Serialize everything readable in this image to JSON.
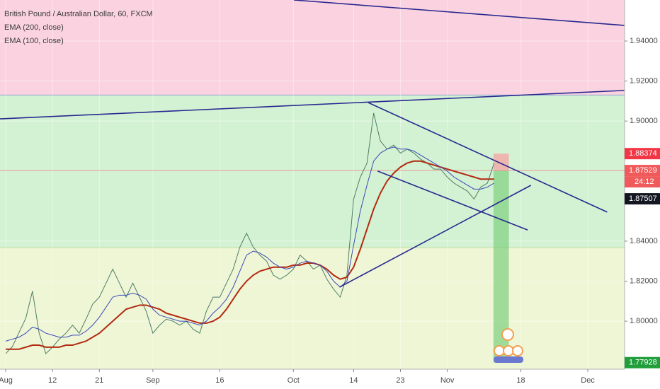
{
  "chart_data": {
    "type": "line",
    "title": "British Pound / Australian Dollar, 60, FXCM",
    "xlim": [
      -0.85,
      92.5
    ],
    "ylim": [
      1.776,
      1.9605
    ],
    "xticks": [
      {
        "value": 0,
        "label": "Aug"
      },
      {
        "value": 7,
        "label": "12"
      },
      {
        "value": 14,
        "label": "21"
      },
      {
        "value": 22,
        "label": "Sep"
      },
      {
        "value": 32,
        "label": "16"
      },
      {
        "value": 43,
        "label": "Oct"
      },
      {
        "value": 52,
        "label": "14"
      },
      {
        "value": 59,
        "label": "23"
      },
      {
        "value": 66,
        "label": "Nov"
      },
      {
        "value": 77,
        "label": "18"
      },
      {
        "value": 87,
        "label": "Dec"
      }
    ],
    "yticks": [
      {
        "value": 1.8,
        "label": "1.80000"
      },
      {
        "value": 1.82,
        "label": "1.82000"
      },
      {
        "value": 1.84,
        "label": "1.84000"
      },
      {
        "value": 1.9,
        "label": "1.90000"
      },
      {
        "value": 1.92,
        "label": "1.92000"
      },
      {
        "value": 1.94,
        "label": "1.94000"
      }
    ],
    "zone_bounds": [
      1.8367,
      1.913
    ],
    "zone_colors": [
      "#eef6d6",
      "#d3f2d3",
      "#fbd3e0"
    ],
    "x": [
      0,
      1,
      2,
      3,
      4,
      5,
      6,
      7,
      8,
      9,
      10,
      11,
      12,
      13,
      14,
      15,
      16,
      17,
      18,
      19,
      20,
      21,
      22,
      23,
      24,
      25,
      26,
      27,
      28,
      29,
      30,
      31,
      32,
      33,
      34,
      35,
      36,
      37,
      38,
      39,
      40,
      41,
      42,
      43,
      44,
      45,
      46,
      47,
      48,
      49,
      50,
      51,
      52,
      53,
      54,
      55,
      56,
      57,
      58,
      59,
      60,
      61,
      62,
      63,
      64,
      65,
      66,
      67,
      68,
      69,
      70,
      71,
      72,
      73
    ],
    "series": [
      {
        "name": "British Pound / Australian Dollar",
        "color": "#4f7d66",
        "width": 1,
        "values": [
          1.7838,
          1.7873,
          1.7944,
          1.8014,
          1.815,
          1.794,
          1.7838,
          1.787,
          1.791,
          1.794,
          1.798,
          1.794,
          1.801,
          1.8085,
          1.812,
          1.819,
          1.826,
          1.819,
          1.812,
          1.819,
          1.812,
          1.805,
          1.794,
          1.798,
          1.801,
          1.8,
          1.798,
          1.8,
          1.796,
          1.794,
          1.805,
          1.812,
          1.812,
          1.819,
          1.826,
          1.837,
          1.844,
          1.837,
          1.833,
          1.83,
          1.823,
          1.821,
          1.823,
          1.826,
          1.833,
          1.83,
          1.826,
          1.828,
          1.821,
          1.816,
          1.812,
          1.823,
          1.861,
          1.872,
          1.879,
          1.904,
          1.89,
          1.886,
          1.888,
          1.884,
          1.886,
          1.884,
          1.881,
          1.879,
          1.876,
          1.876,
          1.872,
          1.869,
          1.867,
          1.865,
          1.861,
          1.867,
          1.869,
          1.879
        ]
      },
      {
        "name": "EMA (200, close)",
        "color": "#b22a10",
        "width": 2,
        "values": [
          1.786,
          1.786,
          1.786,
          1.787,
          1.788,
          1.788,
          1.787,
          1.787,
          1.787,
          1.788,
          1.788,
          1.789,
          1.79,
          1.792,
          1.794,
          1.797,
          1.8,
          1.803,
          1.806,
          1.807,
          1.808,
          1.808,
          1.807,
          1.806,
          1.804,
          1.803,
          1.802,
          1.801,
          1.8,
          1.799,
          1.799,
          1.8,
          1.802,
          1.806,
          1.811,
          1.816,
          1.82,
          1.823,
          1.825,
          1.826,
          1.827,
          1.827,
          1.827,
          1.828,
          1.828,
          1.829,
          1.829,
          1.828,
          1.826,
          1.823,
          1.821,
          1.822,
          1.827,
          1.836,
          1.846,
          1.856,
          1.864,
          1.87,
          1.874,
          1.877,
          1.879,
          1.88,
          1.88,
          1.879,
          1.878,
          1.877,
          1.876,
          1.875,
          1.874,
          1.873,
          1.872,
          1.871,
          1.871,
          1.871
        ]
      },
      {
        "name": "EMA (100, close)",
        "color": "#3b48b8",
        "width": 1,
        "values": [
          1.79,
          1.791,
          1.792,
          1.794,
          1.797,
          1.796,
          1.794,
          1.793,
          1.792,
          1.792,
          1.793,
          1.793,
          1.795,
          1.798,
          1.802,
          1.807,
          1.812,
          1.813,
          1.813,
          1.814,
          1.813,
          1.811,
          1.806,
          1.803,
          1.802,
          1.801,
          1.8,
          1.8,
          1.799,
          1.798,
          1.8,
          1.804,
          1.807,
          1.811,
          1.817,
          1.825,
          1.833,
          1.835,
          1.834,
          1.832,
          1.829,
          1.827,
          1.826,
          1.827,
          1.829,
          1.83,
          1.829,
          1.828,
          1.825,
          1.82,
          1.817,
          1.82,
          1.838,
          1.855,
          1.868,
          1.88,
          1.884,
          1.886,
          1.887,
          1.886,
          1.886,
          1.885,
          1.883,
          1.881,
          1.879,
          1.877,
          1.875,
          1.872,
          1.87,
          1.868,
          1.866,
          1.866,
          1.867,
          1.869
        ]
      }
    ],
    "trendline_color": "#28288f",
    "trendlines": [
      {
        "x": [
          43.07,
          92.5
        ],
        "y": [
          1.9605,
          1.9478
        ]
      },
      {
        "x": [
          -0.85,
          92.5
        ],
        "y": [
          1.9011,
          1.9153
        ]
      },
      {
        "x": [
          54.2,
          89.9
        ],
        "y": [
          1.9092,
          1.8545
        ]
      },
      {
        "x": [
          55.6,
          78.0
        ],
        "y": [
          1.875,
          1.8456
        ]
      },
      {
        "x": [
          49.9,
          78.5
        ],
        "y": [
          1.817,
          1.8679
        ]
      }
    ],
    "position": {
      "x": [
        72.9,
        75.2
      ],
      "entry": 1.87529,
      "stop": 1.88374,
      "target": 1.77928,
      "countdown": "24:12"
    },
    "last_price": 1.87507
  }
}
